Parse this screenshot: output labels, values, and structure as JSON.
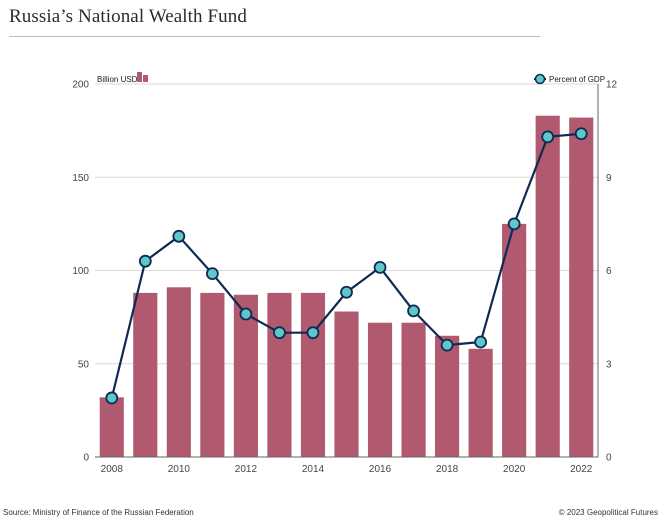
{
  "title": "Russia’s National Wealth Fund",
  "source": "Source: Ministry of Finance of the Russian Federation",
  "copyright": "© 2023 Geopolitical Futures",
  "colors": {
    "bar": "#b0596f",
    "line": "#0e2a55",
    "marker_fill": "#5ec8c7",
    "grid": "#d9d9d9",
    "axis": "#666666"
  },
  "chart_data": {
    "type": "bar",
    "years": [
      2008,
      2009,
      2010,
      2011,
      2012,
      2013,
      2014,
      2015,
      2016,
      2017,
      2018,
      2019,
      2020,
      2021,
      2022
    ],
    "x_tick_labels": [
      "2008",
      "2010",
      "2012",
      "2014",
      "2016",
      "2018",
      "2020",
      "2022"
    ],
    "y_left_ticks": [
      "0",
      "50",
      "100",
      "150",
      "200"
    ],
    "y_right_ticks": [
      "0",
      "3",
      "6",
      "9",
      "12"
    ],
    "ylim_left": [
      0,
      200
    ],
    "ylim_right": [
      0,
      12
    ],
    "grid": true,
    "series": [
      {
        "name": "Billion USD",
        "type": "bar",
        "axis": "left",
        "values": [
          32,
          88,
          91,
          88,
          87,
          88,
          88,
          78,
          72,
          72,
          65,
          58,
          125,
          183,
          182
        ]
      },
      {
        "name": "Percent of GDP",
        "type": "line",
        "axis": "right",
        "values": [
          1.9,
          6.3,
          7.1,
          5.9,
          4.6,
          4.0,
          4.0,
          5.3,
          6.1,
          4.7,
          3.6,
          3.7,
          7.5,
          10.3,
          10.4
        ]
      }
    ]
  }
}
